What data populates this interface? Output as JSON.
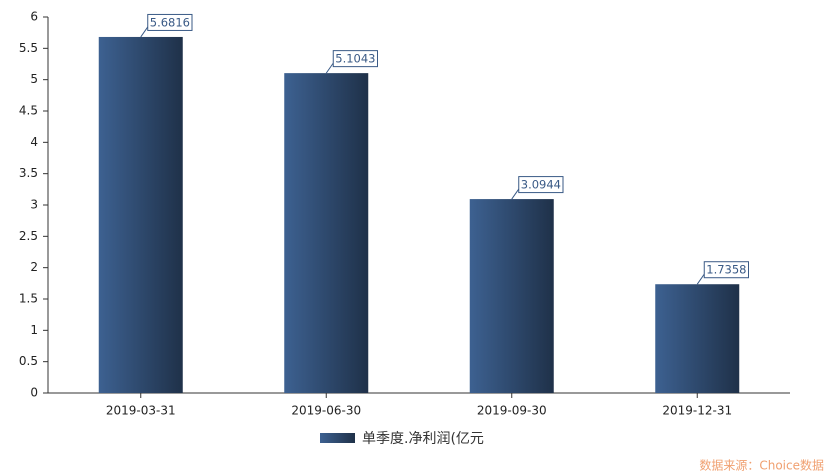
{
  "chart_data": {
    "type": "bar",
    "categories": [
      "2019-03-31",
      "2019-06-30",
      "2019-09-30",
      "2019-12-31"
    ],
    "series": [
      {
        "name": "单季度.净利润(亿元",
        "color": "#3d6191",
        "values": [
          5.6816,
          5.1043,
          3.0944,
          1.7358
        ]
      }
    ],
    "ylim": [
      0,
      6
    ],
    "yticks": [
      0,
      0.5,
      1,
      1.5,
      2,
      2.5,
      3,
      3.5,
      4,
      4.5,
      5,
      5.5,
      6
    ],
    "source": "数据来源：Choice数据"
  }
}
